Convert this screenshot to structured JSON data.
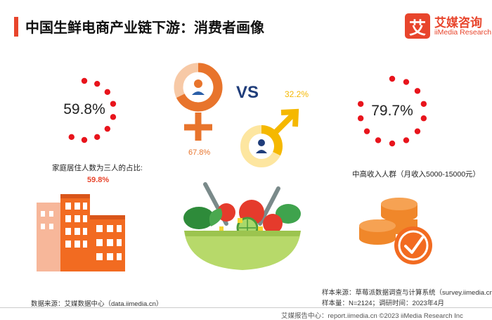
{
  "header": {
    "title": "中国生鲜电商产业链下游：消费者画像"
  },
  "logo": {
    "mark": "艾",
    "name_cn": "艾媒咨询",
    "name_en": "iiMedia Research"
  },
  "chart_data": [
    {
      "type": "pie",
      "id": "household",
      "value_label": "59.8%",
      "caption": "家庭居住人数为三人的占比:",
      "caption_value": "59.8%",
      "values": [
        59.8
      ]
    },
    {
      "type": "pie",
      "id": "gender",
      "vs_label": "VS",
      "categories": [
        "女",
        "男"
      ],
      "values": [
        67.8,
        32.2
      ],
      "female_label": "67.8%",
      "male_label": "32.2%",
      "colors": {
        "female": "#e8742c",
        "male": "#f5b800"
      }
    },
    {
      "type": "pie",
      "id": "income",
      "value_label": "79.7%",
      "caption": "中高收入人群（月收入5000-15000元）",
      "values": [
        79.7
      ]
    }
  ],
  "colors": {
    "accent": "#e8452c",
    "dot": "#e8141c",
    "orange": "#f26b21"
  },
  "sources": {
    "data_source": "数据来源：艾媒数据中心（data.iimedia.cn）",
    "sample_source": "样本来源：草莓派数据调查与计算系统（survey.iimedia.cn）",
    "sample_size": "样本量：N=2124；调研时间：2023年4月"
  },
  "footer": {
    "text": "艾媒报告中心：report.iimedia.cn  ©2023  iiMedia Research  Inc"
  }
}
